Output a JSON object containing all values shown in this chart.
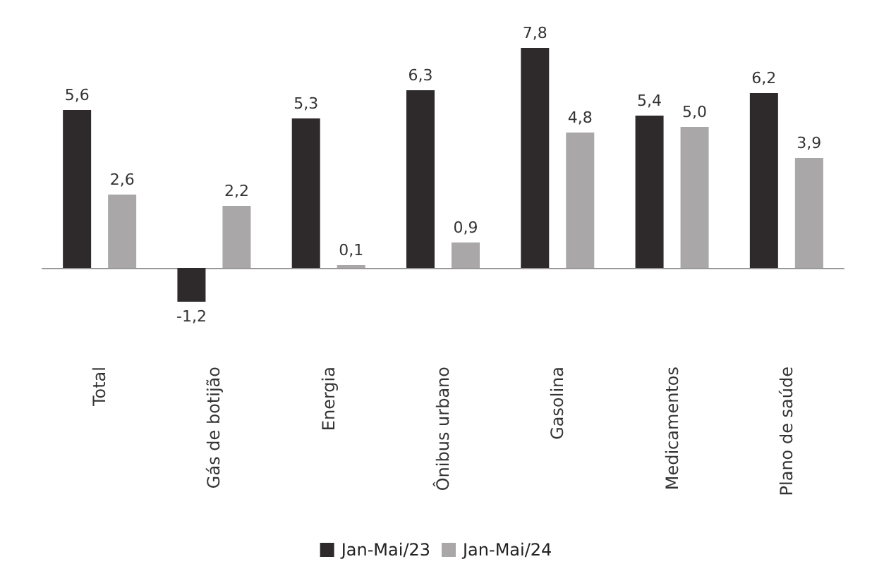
{
  "chart_data": {
    "type": "bar",
    "categories": [
      "Total",
      "Gás de botijão",
      "Energia",
      "Ônibus urbano",
      "Gasolina",
      "Medicamentos",
      "Plano de saúde"
    ],
    "series": [
      {
        "name": "Jan-Mai/23",
        "color": "#2e2a2c",
        "values": [
          5.6,
          -1.2,
          5.3,
          6.3,
          7.8,
          5.4,
          6.2
        ],
        "value_labels": [
          "5,6",
          "-1,2",
          "5,3",
          "6,3",
          "7,8",
          "5,4",
          "6,2"
        ]
      },
      {
        "name": "Jan-Mai/24",
        "color": "#a9a7a8",
        "values": [
          2.6,
          2.2,
          0.1,
          0.9,
          4.8,
          5.0,
          3.9
        ],
        "value_labels": [
          "2,6",
          "2,2",
          "0,1",
          "0,9",
          "4,8",
          "5,0",
          "3,9"
        ]
      }
    ],
    "grid": false,
    "legend": "bottom"
  }
}
